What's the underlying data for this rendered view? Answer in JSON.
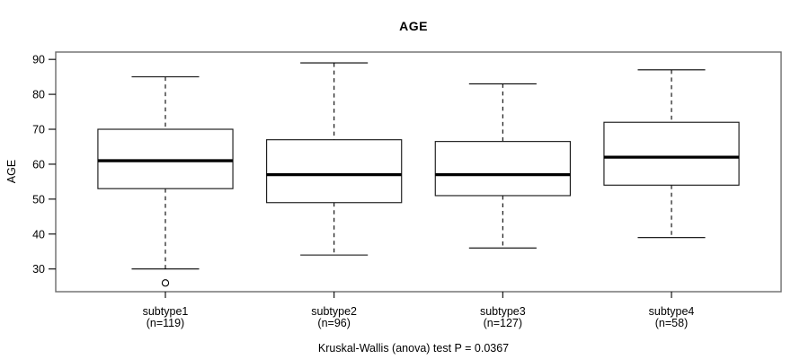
{
  "chart_data": {
    "type": "boxplot",
    "title": "AGE",
    "ylabel": "AGE",
    "footer": "Kruskal-Wallis (anova) test P = 0.0367",
    "yticks": [
      30,
      40,
      50,
      60,
      70,
      80,
      90
    ],
    "ylim": [
      23.5,
      92.1
    ],
    "grid": false,
    "legend": "none",
    "colors": {
      "box_stroke": "#1a1a1a",
      "median": "#000000",
      "frame": "#6b6b6b",
      "text": "#000000"
    },
    "groups": [
      {
        "label": "subtype1",
        "n_label": "(n=119)",
        "whisker_low": 30,
        "q1": 53,
        "median": 61,
        "q3": 70,
        "whisker_high": 85,
        "outliers": [
          26
        ]
      },
      {
        "label": "subtype2",
        "n_label": "(n=96)",
        "whisker_low": 34,
        "q1": 49,
        "median": 57,
        "q3": 67,
        "whisker_high": 89,
        "outliers": []
      },
      {
        "label": "subtype3",
        "n_label": "(n=127)",
        "whisker_low": 36,
        "q1": 51,
        "median": 57,
        "q3": 66.5,
        "whisker_high": 83,
        "outliers": []
      },
      {
        "label": "subtype4",
        "n_label": "(n=58)",
        "whisker_low": 39,
        "q1": 54,
        "median": 62,
        "q3": 72,
        "whisker_high": 87,
        "outliers": []
      }
    ]
  }
}
